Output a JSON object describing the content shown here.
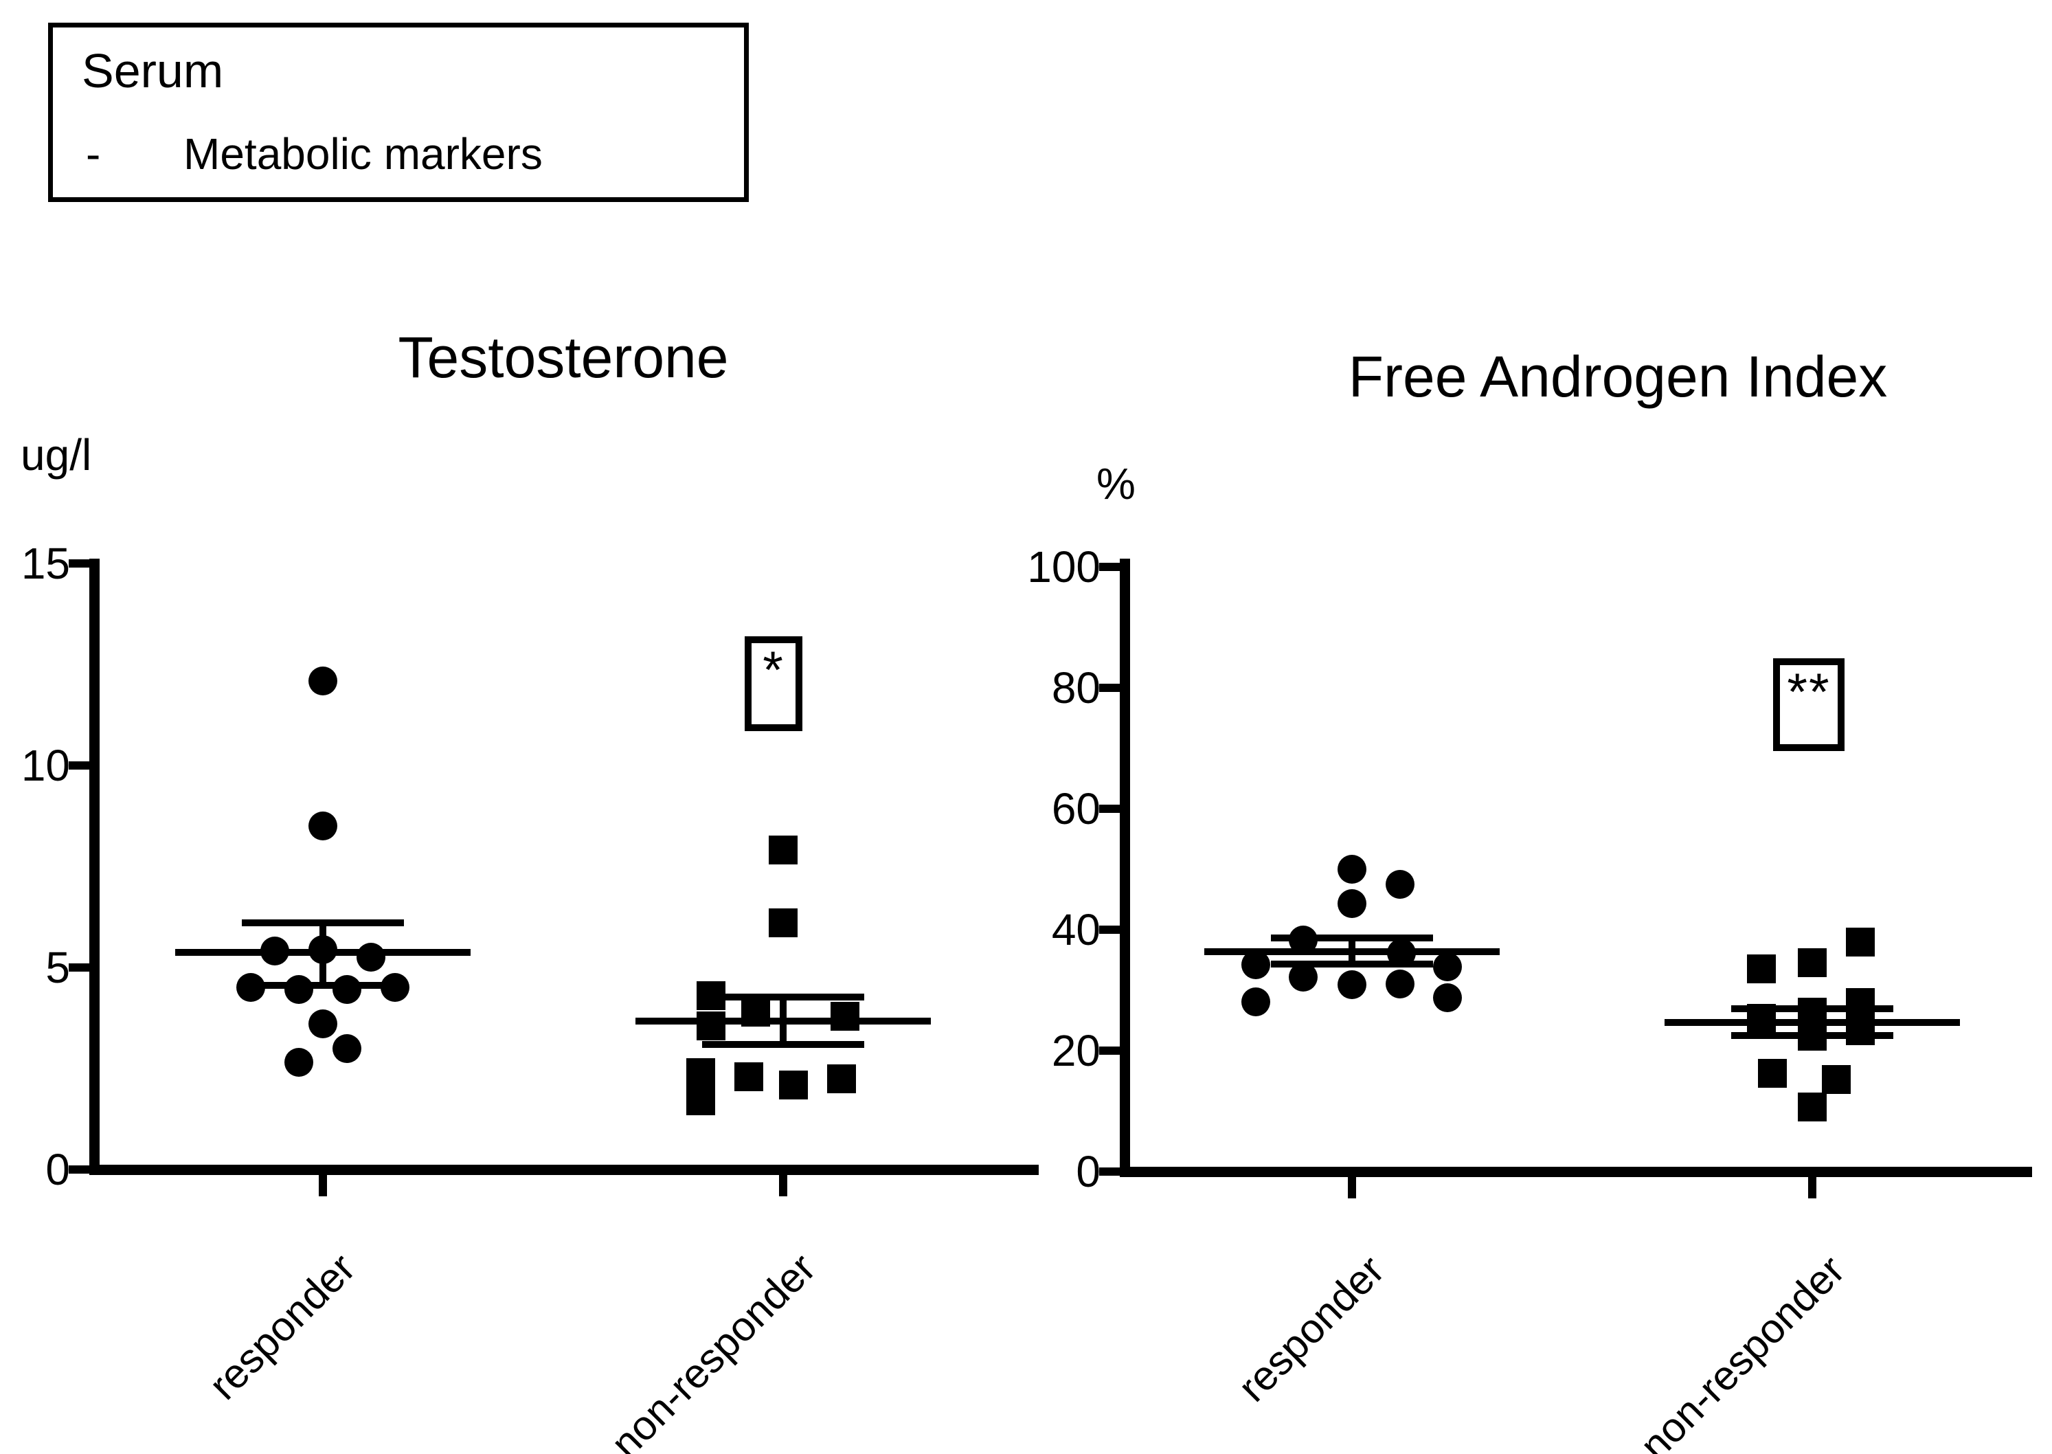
{
  "colors": {
    "foreground": "#000000",
    "background": "#ffffff"
  },
  "legend_box": {
    "title": "Serum",
    "bullet": "-",
    "items": [
      "Metabolic markers"
    ]
  },
  "chart_data": [
    {
      "type": "scatter",
      "title": "Testosterone",
      "ylabel": "ug/l",
      "ylim": [
        0,
        15
      ],
      "yticks": [
        15,
        10,
        5,
        0
      ],
      "categories": [
        "responder",
        "non-responder"
      ],
      "grid": false,
      "series": [
        {
          "name": "responder",
          "marker": "circle",
          "points": [
            [
              0,
              12.1
            ],
            [
              0,
              8.5
            ],
            [
              -70,
              5.4
            ],
            [
              0,
              5.45
            ],
            [
              70,
              5.25
            ],
            [
              -105,
              4.5
            ],
            [
              -35,
              4.45
            ],
            [
              35,
              4.45
            ],
            [
              105,
              4.5
            ],
            [
              0,
              3.6
            ],
            [
              35,
              3.0
            ],
            [
              -35,
              2.65
            ]
          ],
          "mean": 5.37,
          "sem_upper": 6.1,
          "sem_lower": 4.55
        },
        {
          "name": "non-responder",
          "marker": "square",
          "points": [
            [
              0,
              7.9
            ],
            [
              0,
              6.1
            ],
            [
              -105,
              4.3
            ],
            [
              -40,
              3.9
            ],
            [
              90,
              3.8
            ],
            [
              -105,
              3.55
            ],
            [
              -120,
              2.4
            ],
            [
              -50,
              2.3
            ],
            [
              85,
              2.25
            ],
            [
              15,
              2.1
            ],
            [
              -120,
              1.7
            ]
          ],
          "mean": 3.67,
          "sem_upper": 4.27,
          "sem_lower": 3.1,
          "significance": "*"
        }
      ]
    },
    {
      "type": "scatter",
      "title": "Free Androgen Index",
      "ylabel": "%",
      "ylim": [
        0,
        100
      ],
      "yticks": [
        100,
        80,
        60,
        40,
        20,
        0
      ],
      "categories": [
        "responder",
        "non-responder"
      ],
      "grid": false,
      "series": [
        {
          "name": "responder",
          "marker": "circle",
          "points": [
            [
              0,
              50
            ],
            [
              70,
              47.5
            ],
            [
              0,
              44.3
            ],
            [
              -71,
              38.3
            ],
            [
              72,
              36.1
            ],
            [
              -140,
              34.2
            ],
            [
              139,
              33.9
            ],
            [
              -71,
              32.2
            ],
            [
              70,
              31.0
            ],
            [
              0,
              30.9
            ],
            [
              139,
              28.8
            ],
            [
              -140,
              28.1
            ]
          ],
          "mean": 36.4,
          "sem_upper": 38.6,
          "sem_lower": 34.3
        },
        {
          "name": "non-responder",
          "marker": "square",
          "points": [
            [
              70,
              38
            ],
            [
              0,
              34.5
            ],
            [
              -74,
              33.5
            ],
            [
              70,
              27.9
            ],
            [
              0,
              26.4
            ],
            [
              -74,
              25.3
            ],
            [
              70,
              23.3
            ],
            [
              0,
              22.4
            ],
            [
              -58,
              16.3
            ],
            [
              35,
              15.2
            ],
            [
              0,
              10.7
            ]
          ],
          "mean": 24.7,
          "sem_upper": 26.9,
          "sem_lower": 22.5,
          "significance": "**"
        }
      ]
    }
  ]
}
